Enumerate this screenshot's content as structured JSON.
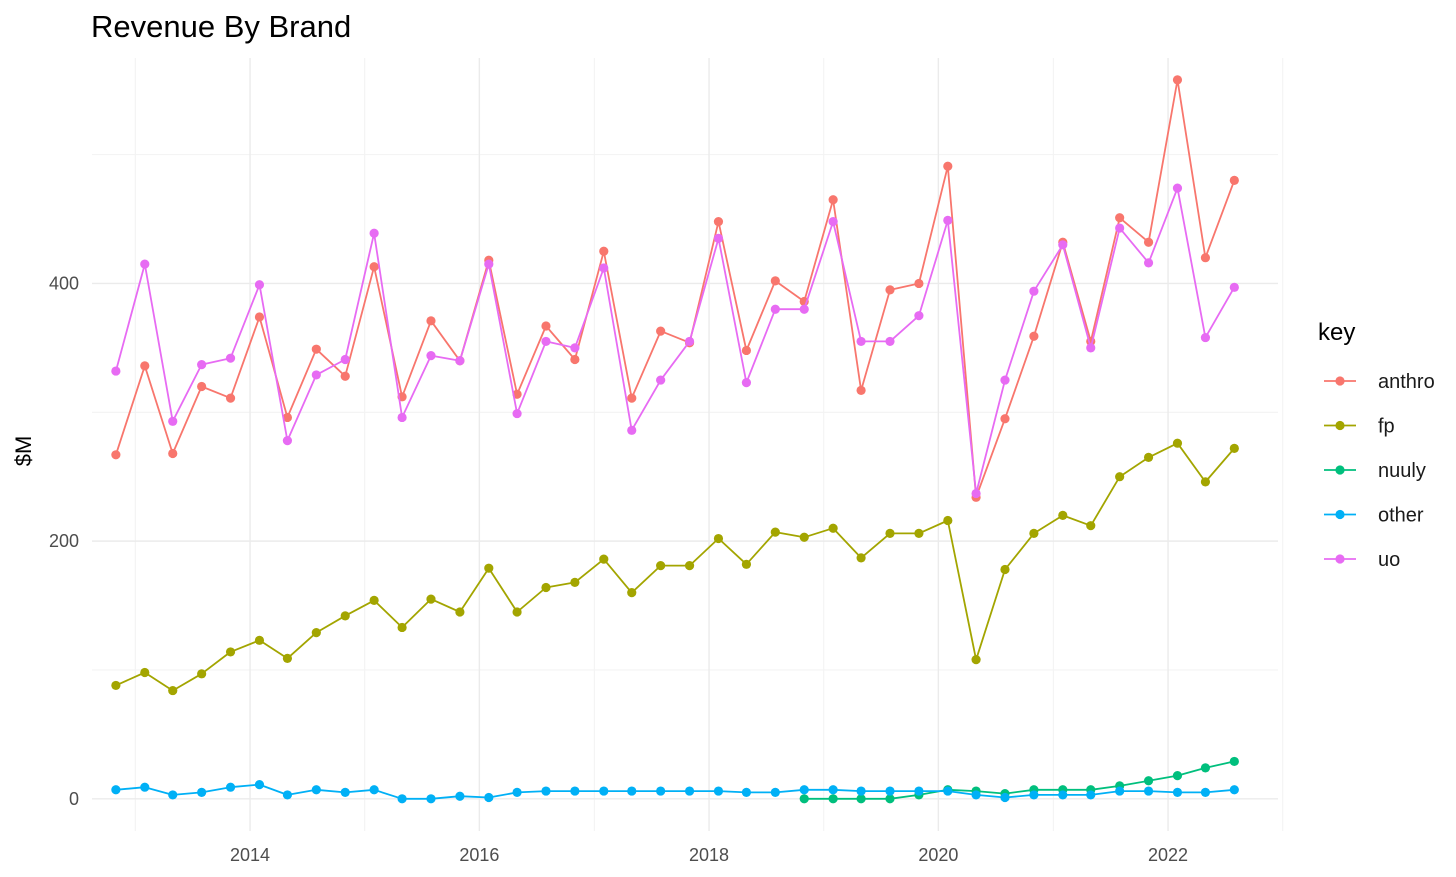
{
  "chart_data": {
    "type": "line",
    "title": "Revenue By Brand",
    "xlabel": "",
    "ylabel": "$M",
    "xlim": [
      "2012-08-16",
      "2022-12-17"
    ],
    "ylim": [
      -25,
      575
    ],
    "x_ticks": [
      {
        "value": "2014-01-01",
        "label": "2014"
      },
      {
        "value": "2016-01-01",
        "label": "2016"
      },
      {
        "value": "2018-01-01",
        "label": "2018"
      },
      {
        "value": "2020-01-01",
        "label": "2020"
      },
      {
        "value": "2022-01-01",
        "label": "2022"
      }
    ],
    "x_minor_ticks": [
      "2013-01-01",
      "2015-01-01",
      "2017-01-01",
      "2019-01-01",
      "2021-01-01",
      "2023-01-01"
    ],
    "y_ticks": [
      0,
      200,
      400
    ],
    "y_minor_ticks": [
      100,
      300,
      500
    ],
    "grid": true,
    "legend": {
      "title": "key",
      "position": "right"
    },
    "series": [
      {
        "name": "anthro",
        "color": "#F8766D",
        "points": [
          [
            "2012-10-31",
            267
          ],
          [
            "2013-01-31",
            336
          ],
          [
            "2013-04-30",
            268
          ],
          [
            "2013-07-31",
            320
          ],
          [
            "2013-10-31",
            311
          ],
          [
            "2014-01-31",
            374
          ],
          [
            "2014-04-30",
            296
          ],
          [
            "2014-07-31",
            349
          ],
          [
            "2014-10-31",
            328
          ],
          [
            "2015-01-31",
            413
          ],
          [
            "2015-04-30",
            312
          ],
          [
            "2015-07-31",
            371
          ],
          [
            "2015-10-31",
            340
          ],
          [
            "2016-01-31",
            418
          ],
          [
            "2016-04-30",
            314
          ],
          [
            "2016-07-31",
            367
          ],
          [
            "2016-10-31",
            341
          ],
          [
            "2017-01-31",
            425
          ],
          [
            "2017-04-30",
            311
          ],
          [
            "2017-07-31",
            363
          ],
          [
            "2017-10-31",
            354
          ],
          [
            "2018-01-31",
            448
          ],
          [
            "2018-04-30",
            348
          ],
          [
            "2018-07-31",
            402
          ],
          [
            "2018-10-31",
            386
          ],
          [
            "2019-01-31",
            465
          ],
          [
            "2019-04-30",
            317
          ],
          [
            "2019-07-31",
            395
          ],
          [
            "2019-10-31",
            400
          ],
          [
            "2020-01-31",
            491
          ],
          [
            "2020-04-30",
            234
          ],
          [
            "2020-07-31",
            295
          ],
          [
            "2020-10-31",
            359
          ],
          [
            "2021-01-31",
            432
          ],
          [
            "2021-04-30",
            355
          ],
          [
            "2021-07-31",
            451
          ],
          [
            "2021-10-31",
            432
          ],
          [
            "2022-01-31",
            558
          ],
          [
            "2022-04-30",
            420
          ],
          [
            "2022-07-31",
            480
          ]
        ]
      },
      {
        "name": "fp",
        "color": "#A3A500",
        "points": [
          [
            "2012-10-31",
            88
          ],
          [
            "2013-01-31",
            98
          ],
          [
            "2013-04-30",
            84
          ],
          [
            "2013-07-31",
            97
          ],
          [
            "2013-10-31",
            114
          ],
          [
            "2014-01-31",
            123
          ],
          [
            "2014-04-30",
            109
          ],
          [
            "2014-07-31",
            129
          ],
          [
            "2014-10-31",
            142
          ],
          [
            "2015-01-31",
            154
          ],
          [
            "2015-04-30",
            133
          ],
          [
            "2015-07-31",
            155
          ],
          [
            "2015-10-31",
            145
          ],
          [
            "2016-01-31",
            179
          ],
          [
            "2016-04-30",
            145
          ],
          [
            "2016-07-31",
            164
          ],
          [
            "2016-10-31",
            168
          ],
          [
            "2017-01-31",
            186
          ],
          [
            "2017-04-30",
            160
          ],
          [
            "2017-07-31",
            181
          ],
          [
            "2017-10-31",
            181
          ],
          [
            "2018-01-31",
            202
          ],
          [
            "2018-04-30",
            182
          ],
          [
            "2018-07-31",
            207
          ],
          [
            "2018-10-31",
            203
          ],
          [
            "2019-01-31",
            210
          ],
          [
            "2019-04-30",
            187
          ],
          [
            "2019-07-31",
            206
          ],
          [
            "2019-10-31",
            206
          ],
          [
            "2020-01-31",
            216
          ],
          [
            "2020-04-30",
            108
          ],
          [
            "2020-07-31",
            178
          ],
          [
            "2020-10-31",
            206
          ],
          [
            "2021-01-31",
            220
          ],
          [
            "2021-04-30",
            212
          ],
          [
            "2021-07-31",
            250
          ],
          [
            "2021-10-31",
            265
          ],
          [
            "2022-01-31",
            276
          ],
          [
            "2022-04-30",
            246
          ],
          [
            "2022-07-31",
            272
          ]
        ]
      },
      {
        "name": "nuuly",
        "color": "#00BF7D",
        "points": [
          [
            "2018-10-31",
            0
          ],
          [
            "2019-01-31",
            0
          ],
          [
            "2019-04-30",
            0
          ],
          [
            "2019-07-31",
            0
          ],
          [
            "2019-10-31",
            3
          ],
          [
            "2020-01-31",
            7
          ],
          [
            "2020-04-30",
            6
          ],
          [
            "2020-07-31",
            4
          ],
          [
            "2020-10-31",
            7
          ],
          [
            "2021-01-31",
            7
          ],
          [
            "2021-04-30",
            7
          ],
          [
            "2021-07-31",
            10
          ],
          [
            "2021-10-31",
            14
          ],
          [
            "2022-01-31",
            18
          ],
          [
            "2022-04-30",
            24
          ],
          [
            "2022-07-31",
            29
          ]
        ]
      },
      {
        "name": "other",
        "color": "#00B0F6",
        "points": [
          [
            "2012-10-31",
            7
          ],
          [
            "2013-01-31",
            9
          ],
          [
            "2013-04-30",
            3
          ],
          [
            "2013-07-31",
            5
          ],
          [
            "2013-10-31",
            9
          ],
          [
            "2014-01-31",
            11
          ],
          [
            "2014-04-30",
            3
          ],
          [
            "2014-07-31",
            7
          ],
          [
            "2014-10-31",
            5
          ],
          [
            "2015-01-31",
            7
          ],
          [
            "2015-04-30",
            0
          ],
          [
            "2015-07-31",
            0
          ],
          [
            "2015-10-31",
            2
          ],
          [
            "2016-01-31",
            1
          ],
          [
            "2016-04-30",
            5
          ],
          [
            "2016-07-31",
            6
          ],
          [
            "2016-10-31",
            6
          ],
          [
            "2017-01-31",
            6
          ],
          [
            "2017-04-30",
            6
          ],
          [
            "2017-07-31",
            6
          ],
          [
            "2017-10-31",
            6
          ],
          [
            "2018-01-31",
            6
          ],
          [
            "2018-04-30",
            5
          ],
          [
            "2018-07-31",
            5
          ],
          [
            "2018-10-31",
            7
          ],
          [
            "2019-01-31",
            7
          ],
          [
            "2019-04-30",
            6
          ],
          [
            "2019-07-31",
            6
          ],
          [
            "2019-10-31",
            6
          ],
          [
            "2020-01-31",
            6
          ],
          [
            "2020-04-30",
            3
          ],
          [
            "2020-07-31",
            1
          ],
          [
            "2020-10-31",
            3
          ],
          [
            "2021-01-31",
            3
          ],
          [
            "2021-04-30",
            3
          ],
          [
            "2021-07-31",
            6
          ],
          [
            "2021-10-31",
            6
          ],
          [
            "2022-01-31",
            5
          ],
          [
            "2022-04-30",
            5
          ],
          [
            "2022-07-31",
            7
          ]
        ]
      },
      {
        "name": "uo",
        "color": "#E76BF3",
        "points": [
          [
            "2012-10-31",
            332
          ],
          [
            "2013-01-31",
            415
          ],
          [
            "2013-04-30",
            293
          ],
          [
            "2013-07-31",
            337
          ],
          [
            "2013-10-31",
            342
          ],
          [
            "2014-01-31",
            399
          ],
          [
            "2014-04-30",
            278
          ],
          [
            "2014-07-31",
            329
          ],
          [
            "2014-10-31",
            341
          ],
          [
            "2015-01-31",
            439
          ],
          [
            "2015-04-30",
            296
          ],
          [
            "2015-07-31",
            344
          ],
          [
            "2015-10-31",
            340
          ],
          [
            "2016-01-31",
            415
          ],
          [
            "2016-04-30",
            299
          ],
          [
            "2016-07-31",
            355
          ],
          [
            "2016-10-31",
            350
          ],
          [
            "2017-01-31",
            412
          ],
          [
            "2017-04-30",
            286
          ],
          [
            "2017-07-31",
            325
          ],
          [
            "2017-10-31",
            355
          ],
          [
            "2018-01-31",
            435
          ],
          [
            "2018-04-30",
            323
          ],
          [
            "2018-07-31",
            380
          ],
          [
            "2018-10-31",
            380
          ],
          [
            "2019-01-31",
            448
          ],
          [
            "2019-04-30",
            355
          ],
          [
            "2019-07-31",
            355
          ],
          [
            "2019-10-31",
            375
          ],
          [
            "2020-01-31",
            449
          ],
          [
            "2020-04-30",
            237
          ],
          [
            "2020-07-31",
            325
          ],
          [
            "2020-10-31",
            394
          ],
          [
            "2021-01-31",
            430
          ],
          [
            "2021-04-30",
            350
          ],
          [
            "2021-07-31",
            443
          ],
          [
            "2021-10-31",
            416
          ],
          [
            "2022-01-31",
            474
          ],
          [
            "2022-04-30",
            358
          ],
          [
            "2022-07-31",
            397
          ]
        ]
      }
    ]
  }
}
